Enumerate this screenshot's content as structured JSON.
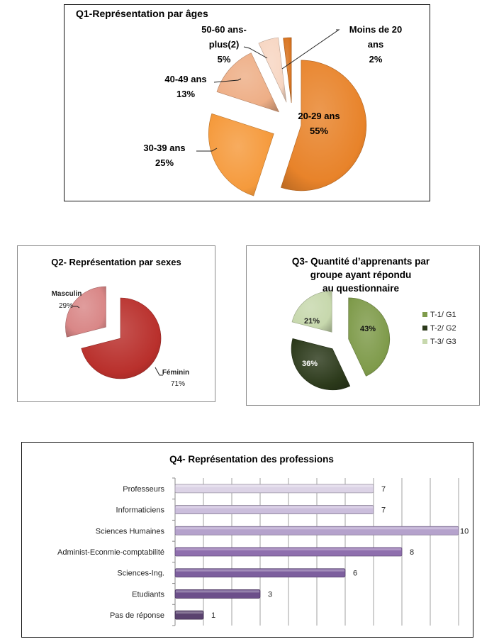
{
  "chart_data": [
    {
      "id": "q1",
      "type": "pie",
      "title": "Q1-Représentation par âges",
      "slices": [
        {
          "label_lines": [
            "20-29 ans",
            "55%"
          ],
          "category": "20-29 ans",
          "value": 55,
          "color": "#e8832a"
        },
        {
          "label_lines": [
            "30-39 ans",
            "25%"
          ],
          "category": "30-39 ans",
          "value": 25,
          "color": "#f59a3c"
        },
        {
          "label_lines": [
            "40-49 ans",
            "13%"
          ],
          "category": "40-49 ans",
          "value": 13,
          "color": "#eeae86"
        },
        {
          "label_lines": [
            "50-60 ans-",
            "plus(2)",
            "5%"
          ],
          "category": "50-60 ans-plus(2)",
          "value": 5,
          "color": "#f7d6c2"
        },
        {
          "label_lines": [
            "Moins de 20",
            "ans",
            "2%"
          ],
          "category": "Moins de 20 ans",
          "value": 2,
          "color": "#d8731f"
        }
      ]
    },
    {
      "id": "q2",
      "type": "pie",
      "title": "Q2- Représentation par sexes",
      "slices": [
        {
          "label_lines": [
            "Féminin",
            "71%"
          ],
          "category": "Féminin",
          "value": 71,
          "color": "#b9302c"
        },
        {
          "label_lines": [
            "Masculin",
            "29%"
          ],
          "category": "Masculin",
          "value": 29,
          "color": "#d98787"
        }
      ]
    },
    {
      "id": "q3",
      "type": "pie",
      "title_lines": [
        "Q3- Quantité d’apprenants par",
        "groupe ayant répondu",
        "au questionnaire"
      ],
      "slices": [
        {
          "label": "43%",
          "category": "T-1/ G1",
          "value": 43,
          "color": "#7f9b4b"
        },
        {
          "label": "36%",
          "category": "T-2/ G2",
          "value": 36,
          "color": "#2c3a1b"
        },
        {
          "label": "21%",
          "category": "T-3/ G3",
          "value": 21,
          "color": "#c7d8ad"
        }
      ],
      "legend": [
        "T-1/ G1",
        "T-2/ G2",
        "T-3/ G3"
      ],
      "legend_position": "right"
    },
    {
      "id": "q4",
      "type": "bar",
      "orientation": "horizontal",
      "title": "Q4- Représentation des professions",
      "categories": [
        "Professeurs",
        "Informaticiens",
        "Sciences Humaines",
        "Administ-Econmie-comptabilité",
        "Sciences-Ing.",
        "Etudiants",
        "Pas de réponse"
      ],
      "values": [
        7,
        7,
        10,
        8,
        6,
        3,
        1
      ],
      "data_labels": [
        "7",
        "7",
        "10",
        "8",
        "6",
        "3",
        "1"
      ],
      "colors": [
        "#dcd3e6",
        "#cbbedc",
        "#b5a2cc",
        "#8f6fae",
        "#7d5f9e",
        "#6c4f8a",
        "#5a426f"
      ],
      "xlim": [
        0,
        10
      ],
      "grid": true,
      "xlabel": "",
      "ylabel": ""
    }
  ]
}
